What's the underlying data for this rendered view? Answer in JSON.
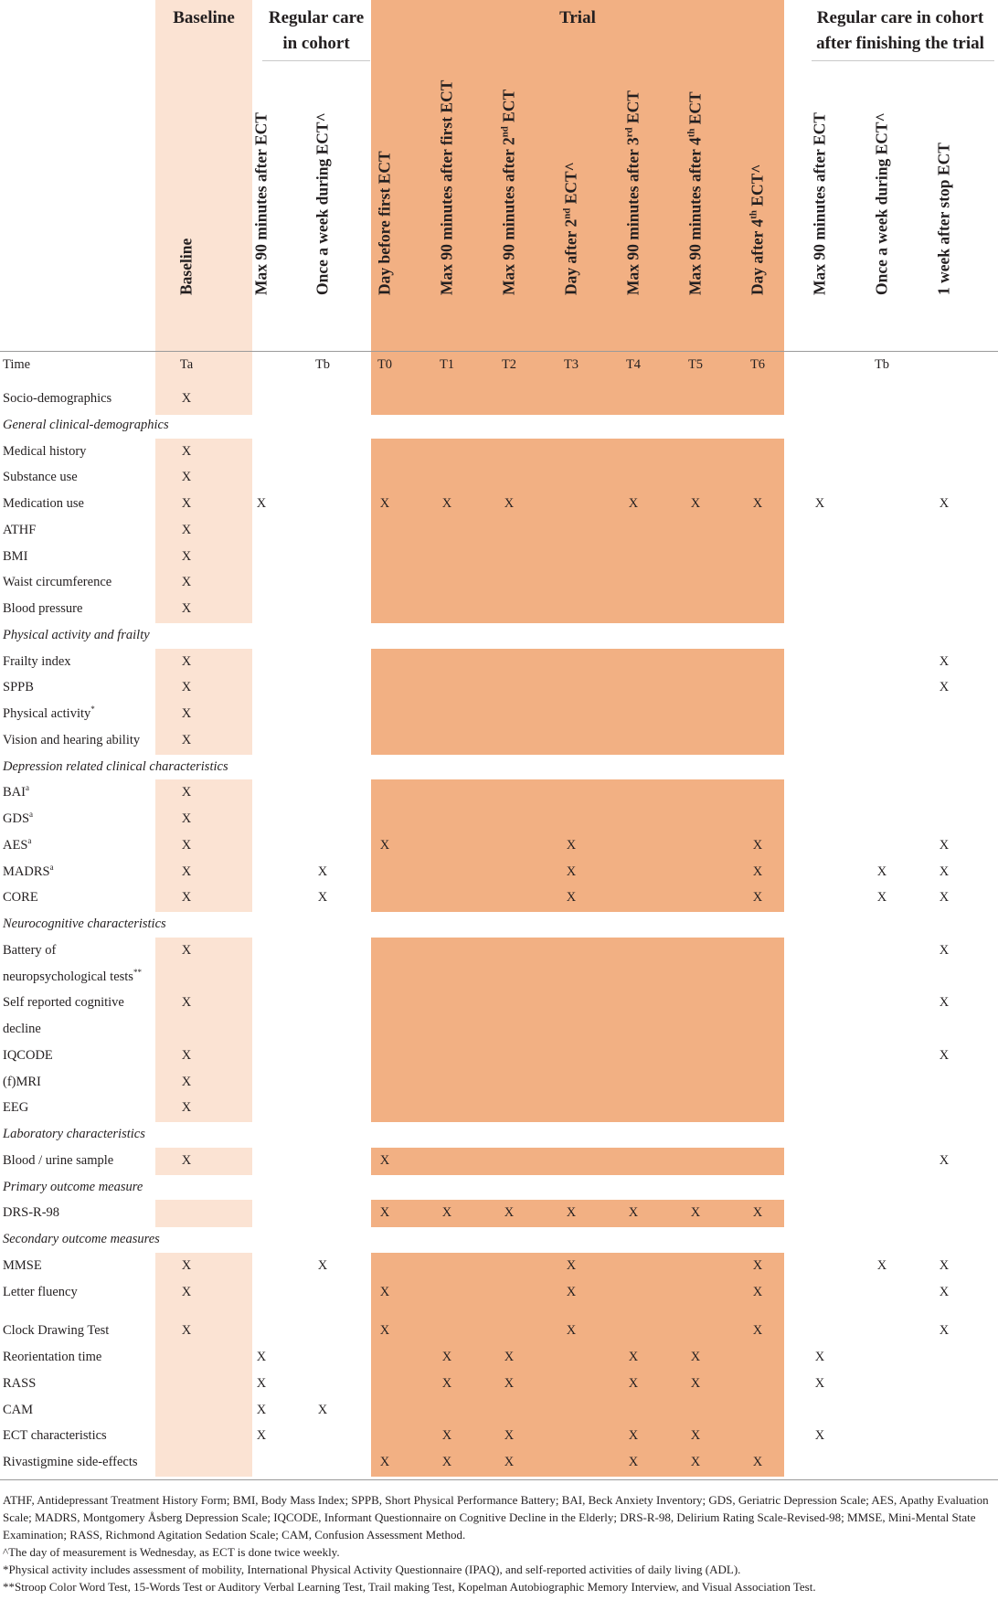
{
  "groups": [
    {
      "key": "baseline",
      "label": "Baseline"
    },
    {
      "key": "regular",
      "label": "Regular care\nin cohort"
    },
    {
      "key": "trial",
      "label": "Trial"
    },
    {
      "key": "after",
      "label": "Regular care in cohort\nafter finishing the trial"
    }
  ],
  "columns": [
    {
      "key": "baseline",
      "label": "Baseline",
      "time": "Ta"
    },
    {
      "key": "c1",
      "label": "Max 90 minutes after ECT",
      "time": ""
    },
    {
      "key": "c2",
      "label": "Once a week during ECT^",
      "time": "Tb"
    },
    {
      "key": "t0",
      "label": "Day before first ECT",
      "time": "T0"
    },
    {
      "key": "t1",
      "label": "Max 90 minutes after first ECT",
      "time": "T1"
    },
    {
      "key": "t2",
      "label": "Max 90 minutes after 2nd ECT",
      "time": "T2"
    },
    {
      "key": "t3",
      "label": "Day after 2nd ECT^",
      "time": "T3"
    },
    {
      "key": "t4",
      "label": "Max 90 minutes after 3rd ECT",
      "time": "T4"
    },
    {
      "key": "t5",
      "label": "Max 90 minutes after 4th ECT",
      "time": "T5"
    },
    {
      "key": "t6",
      "label": "Day after 4th ECT^",
      "time": "T6"
    },
    {
      "key": "a1",
      "label": "Max 90 minutes after ECT",
      "time": ""
    },
    {
      "key": "a2",
      "label": "Once a week during ECT^",
      "time": "Tb"
    },
    {
      "key": "a3",
      "label": "1 week after stop ECT",
      "time": ""
    }
  ],
  "time_row_label": "Time",
  "mark": "X",
  "rows": [
    {
      "label": "Socio-demographics",
      "marks": [
        0
      ]
    },
    {
      "label": "General clinical-demographics",
      "section": true
    },
    {
      "label": "Medical history",
      "marks": [
        0
      ]
    },
    {
      "label": "Substance use",
      "marks": [
        0
      ]
    },
    {
      "label": "Medication use",
      "marks": [
        0,
        1,
        3,
        4,
        5,
        7,
        8,
        9,
        10,
        12
      ]
    },
    {
      "label": "ATHF",
      "marks": [
        0
      ]
    },
    {
      "label": "BMI",
      "marks": [
        0
      ]
    },
    {
      "label": "Waist circumference",
      "marks": [
        0
      ]
    },
    {
      "label": "Blood pressure",
      "marks": [
        0
      ]
    },
    {
      "label": "Physical activity and frailty",
      "section": true
    },
    {
      "label": "Frailty index",
      "marks": [
        0,
        12
      ]
    },
    {
      "label": "SPPB",
      "marks": [
        0,
        12
      ]
    },
    {
      "label": "Physical activity*",
      "marks": [
        0
      ]
    },
    {
      "label": "Vision and hearing ability",
      "marks": [
        0
      ]
    },
    {
      "label": "Depression related clinical characteristics",
      "section": true
    },
    {
      "label": "BAIa",
      "marks": [
        0
      ]
    },
    {
      "label": "GDSa",
      "marks": [
        0
      ]
    },
    {
      "label": "AESa",
      "marks": [
        0,
        3,
        6,
        9,
        12
      ]
    },
    {
      "label": "MADRSa",
      "marks": [
        0,
        2,
        6,
        9,
        11,
        12
      ]
    },
    {
      "label": "CORE",
      "marks": [
        0,
        2,
        6,
        9,
        11,
        12
      ]
    },
    {
      "label": "Neurocognitive characteristics",
      "section": true
    },
    {
      "label": "Battery of",
      "marks": [
        0,
        12
      ]
    },
    {
      "label": "neuropsychological tests**",
      "marks": []
    },
    {
      "label": "Self reported cognitive",
      "marks": [
        0,
        12
      ]
    },
    {
      "label": "decline",
      "marks": []
    },
    {
      "label": "IQCODE",
      "marks": [
        0,
        12
      ]
    },
    {
      "label": "(f)MRI",
      "marks": [
        0
      ]
    },
    {
      "label": "EEG",
      "marks": [
        0
      ]
    },
    {
      "label": "Laboratory characteristics",
      "section": true
    },
    {
      "label": "Blood / urine sample",
      "marks": [
        0,
        3,
        12
      ]
    },
    {
      "label": "Primary outcome measure",
      "section": true
    },
    {
      "label": "DRS-R-98",
      "marks": [
        3,
        4,
        5,
        6,
        7,
        8,
        9
      ]
    },
    {
      "label": "Secondary outcome measures",
      "section": true
    },
    {
      "label": "MMSE",
      "marks": [
        0,
        2,
        6,
        9,
        11,
        12
      ]
    },
    {
      "label": "Letter fluency",
      "marks": [
        0,
        3,
        6,
        9,
        12
      ]
    },
    {
      "label": "Clock Drawing Test",
      "marks": [
        0,
        3,
        6,
        9,
        12
      ]
    },
    {
      "label": "Reorientation time",
      "marks": [
        1,
        4,
        5,
        7,
        8,
        10
      ]
    },
    {
      "label": "RASS",
      "marks": [
        1,
        4,
        5,
        7,
        8,
        10
      ]
    },
    {
      "label": "CAM",
      "marks": [
        1,
        2
      ]
    },
    {
      "label": "ECT characteristics",
      "marks": [
        1,
        4,
        5,
        7,
        8,
        10
      ]
    },
    {
      "label": "Rivastigmine side-effects",
      "marks": [
        3,
        4,
        5,
        7,
        8,
        9
      ]
    }
  ],
  "footnotes": {
    "abbreviations": "ATHF, Antidepressant Treatment History Form; BMI, Body Mass Index; SPPB, Short Physical Performance Battery; BAI, Beck Anxiety Inventory; GDS, Geriatric Depression Scale; AES, Apathy Evaluation Scale; MADRS, Montgomery Åsberg Depression Scale; IQCODE, Informant Questionnaire on Cognitive Decline in the Elderly; DRS-R-98, Delirium Rating Scale-Revised-98; MMSE, Mini-Mental State Examination; RASS, Richmond Agitation Sedation Scale; CAM, Confusion Assessment Method.",
    "caret": "^The day of measurement is Wednesday, as ECT is done twice weekly.",
    "star": "*Physical activity includes assessment of mobility, International Physical Activity Questionnaire (IPAQ), and self-reported activities of daily living (ADL).",
    "doublestar": "**Stroop Color Word Test, 15-Words Test or Auditory Verbal Learning Test, Trail making Test, Kopelman Autobiographic Memory Interview, and Visual Association Test."
  },
  "colors": {
    "baseline_band": "#fbe3d3",
    "trial_band": "#f2b083",
    "text": "#231f20"
  }
}
